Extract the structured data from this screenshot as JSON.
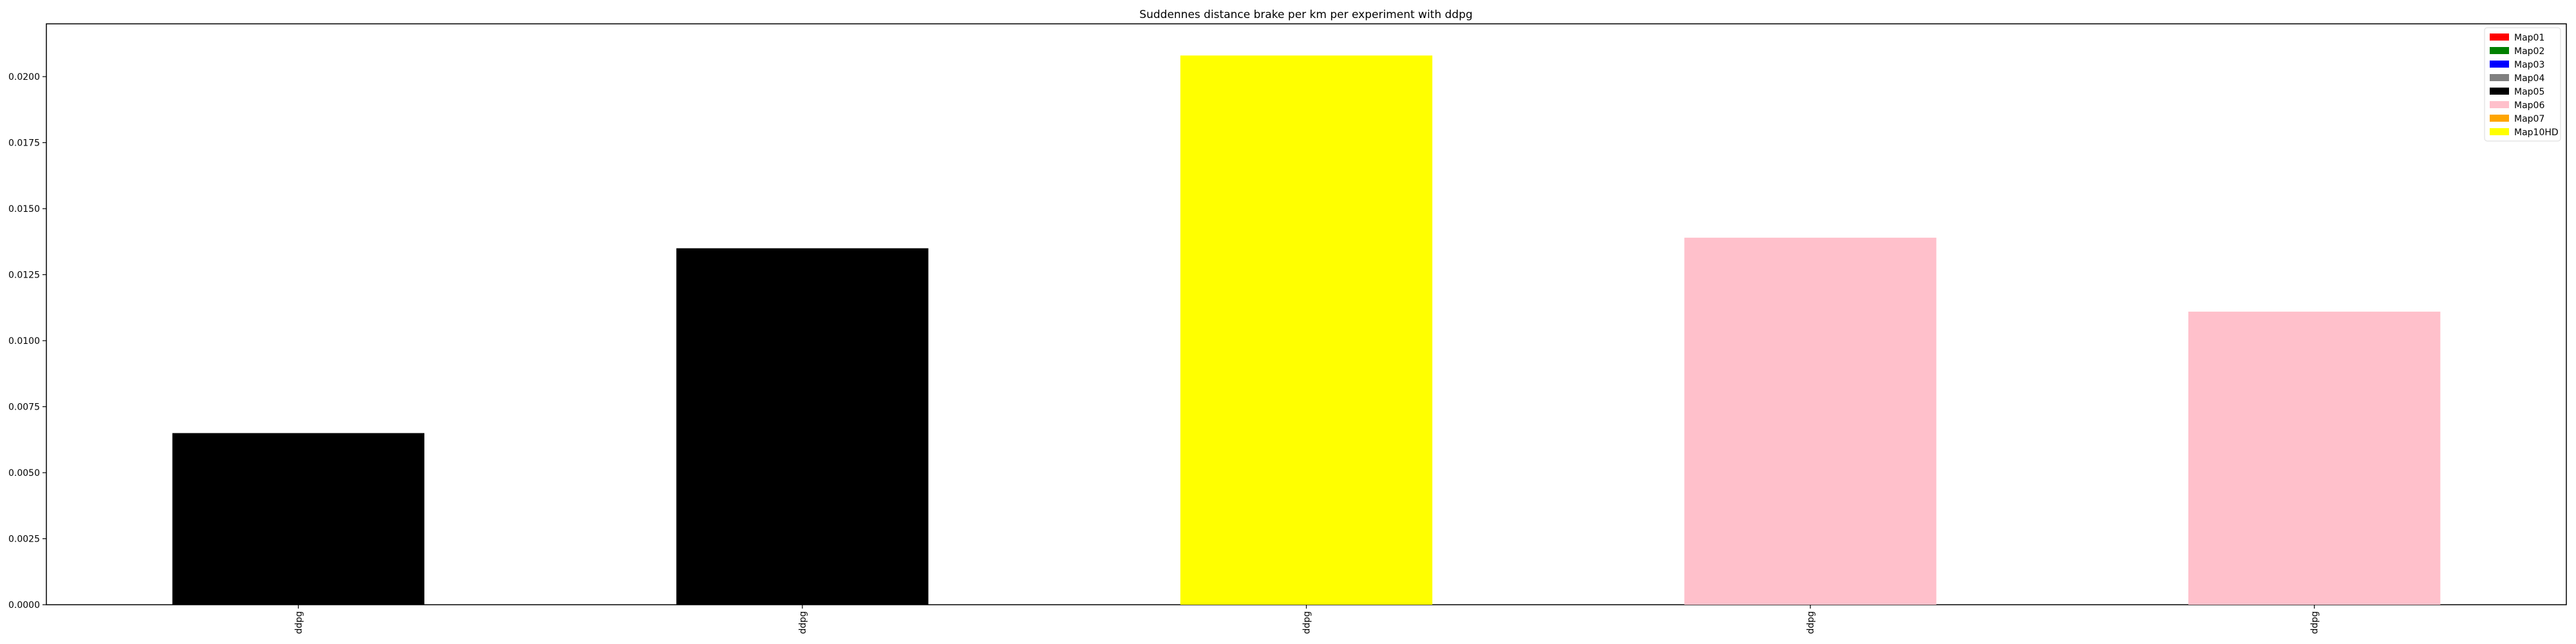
{
  "chart_data": {
    "type": "bar",
    "title": "Suddennes distance brake per km per experiment with ddpg",
    "xlabel": "",
    "ylabel": "",
    "categories": [
      "ddpg",
      "ddpg",
      "ddpg",
      "ddpg",
      "ddpg"
    ],
    "values": [
      0.0065,
      0.0135,
      0.0208,
      0.0139,
      0.0111
    ],
    "bar_colors": [
      "#000000",
      "#000000",
      "#ffff00",
      "#ffc0cb",
      "#ffc0cb"
    ],
    "ylim": [
      0,
      0.022
    ],
    "yticks": [
      0.0,
      0.0025,
      0.005,
      0.0075,
      0.01,
      0.0125,
      0.015,
      0.0175,
      0.02
    ],
    "ytick_labels": [
      "0.0000",
      "0.0025",
      "0.0050",
      "0.0075",
      "0.0100",
      "0.0125",
      "0.0150",
      "0.0175",
      "0.0200"
    ],
    "grid": false,
    "legend_position": "top-right",
    "legend": [
      {
        "label": "Map01",
        "color": "#ff0000"
      },
      {
        "label": "Map02",
        "color": "#008000"
      },
      {
        "label": "Map03",
        "color": "#0000ff"
      },
      {
        "label": "Map04",
        "color": "#808080"
      },
      {
        "label": "Map05",
        "color": "#000000"
      },
      {
        "label": "Map06",
        "color": "#ffc0cb"
      },
      {
        "label": "Map07",
        "color": "#ffa500"
      },
      {
        "label": "Map10HD",
        "color": "#ffff00"
      }
    ]
  }
}
